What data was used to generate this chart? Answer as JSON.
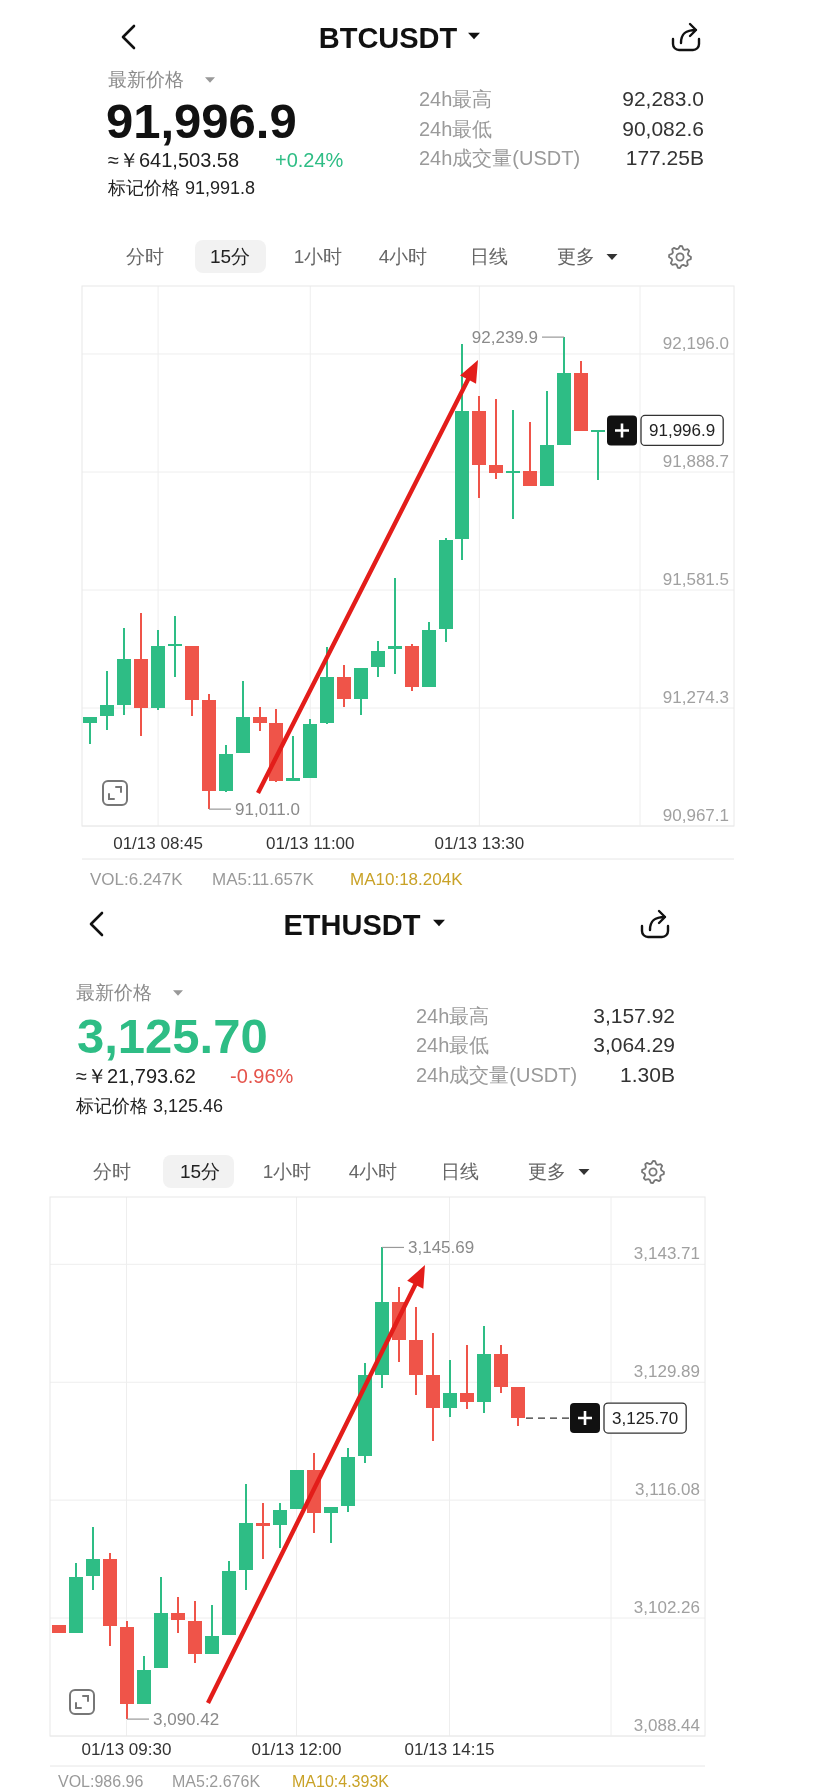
{
  "chart_data": [
    {
      "type": "candlestick",
      "title": "BTCUSDT",
      "annotations": [
        "最新价格",
        "91,996.9",
        "≈￥641,503.58",
        "+0.24%",
        "标记价格 91,991.8",
        "24h最高",
        "92,283.0",
        "24h最低",
        "90,082.6",
        "24h成交量(USDT)",
        "177.25B",
        "分时",
        "15分",
        "1小时",
        "4小时",
        "日线",
        "更多",
        "VOL:6.247K",
        "MA5:11.657K",
        "MA10:18.204K",
        "92,239.9",
        "91,011.0",
        "91,996.9"
      ],
      "categories": [
        null,
        null,
        null,
        null,
        "01/13 08:45",
        null,
        null,
        null,
        null,
        null,
        null,
        null,
        null,
        "01/13 11:00",
        null,
        null,
        null,
        null,
        null,
        null,
        null,
        null,
        null,
        "01/13 13:30",
        null,
        null,
        null,
        null,
        null,
        null,
        null,
        null,
        null
      ],
      "ohlc": [
        [
          91235,
          91250,
          91181,
          91250
        ],
        [
          91254,
          91370,
          91217,
          91282
        ],
        [
          91283,
          91483,
          91256,
          91401
        ],
        [
          91401,
          91521,
          91202,
          91274
        ],
        [
          91274,
          91477,
          91269,
          91436
        ],
        [
          91437,
          91514,
          91356,
          91439
        ],
        [
          91436,
          91436,
          91254,
          91295
        ],
        [
          91295,
          91311,
          91011.0,
          91059
        ],
        [
          91059,
          91178,
          91056,
          91155
        ],
        [
          91157,
          91344,
          91157,
          91250
        ],
        [
          91250,
          91277,
          91214,
          91236
        ],
        [
          91235,
          91272,
          91082,
          91084
        ],
        [
          91085,
          91202,
          91085,
          91092
        ],
        [
          91092,
          91246,
          91092,
          91233
        ],
        [
          91235,
          91434,
          91233,
          91355
        ],
        [
          91355,
          91387,
          91277,
          91297
        ],
        [
          91298,
          91379,
          91256,
          91379
        ],
        [
          91381,
          91448,
          91356,
          91423
        ],
        [
          91429,
          91613,
          91363,
          91436
        ],
        [
          91436,
          91441,
          91318,
          91330
        ],
        [
          91330,
          91498,
          91330,
          91477
        ],
        [
          91481,
          91717,
          91446,
          91712
        ],
        [
          91714,
          92222,
          91660,
          92047
        ],
        [
          92047,
          92087,
          91821,
          91908
        ],
        [
          91907,
          92079,
          91870,
          91886
        ],
        [
          91887,
          92050,
          91766,
          91891
        ],
        [
          91892,
          92019,
          91852,
          91852
        ],
        [
          91852,
          92100,
          91852,
          91959
        ],
        [
          91960,
          92239.9,
          91960,
          92147
        ],
        [
          92147,
          92177,
          91995,
          91995
        ],
        [
          91995,
          91996.9,
          91868,
          91996.9
        ],
        null,
        null
      ],
      "colors": [
        "#2ebd85",
        "#2ebd85",
        "#2ebd85",
        "#ef5449",
        "#2ebd85",
        "#2ebd85",
        "#ef5449",
        "#ef5449",
        "#2ebd85",
        "#2ebd85",
        "#ef5449",
        "#ef5449",
        "#2ebd85",
        "#2ebd85",
        "#2ebd85",
        "#ef5449",
        "#2ebd85",
        "#2ebd85",
        "#2ebd85",
        "#ef5449",
        "#2ebd85",
        "#2ebd85",
        "#2ebd85",
        "#ef5449",
        "#ef5449",
        "#2ebd85",
        "#ef5449",
        "#2ebd85",
        "#2ebd85",
        "#ef5449",
        "#2ebd85",
        null,
        null
      ],
      "ylim": [
        90967.1,
        92373
      ],
      "yticks": [
        {
          "value": 92196.0,
          "label": "92,196.0"
        },
        {
          "value": 91888.7,
          "label": "91,888.7"
        },
        {
          "value": 91581.5,
          "label": "91,581.5"
        },
        {
          "value": 91274.3,
          "label": "91,274.3"
        },
        {
          "value": 90967.1,
          "label": "90,967.1"
        }
      ],
      "grid": true
    },
    {
      "type": "candlestick",
      "title": "ETHUSDT",
      "annotations": [
        "最新价格",
        "3,125.70",
        "≈￥21,793.62",
        "-0.96%",
        "标记价格 3,125.46",
        "24h最高",
        "3,157.92",
        "24h最低",
        "3,064.29",
        "24h成交量(USDT)",
        "1.30B",
        "分时",
        "15分",
        "1小时",
        "4小时",
        "日线",
        "更多",
        "VOL:986.96",
        "MA5:2.676K",
        "MA10:4.393K",
        "3,145.69",
        "3,090.42",
        "3,125.70"
      ],
      "categories": [
        null,
        null,
        null,
        null,
        "01/13 09:30",
        null,
        null,
        null,
        null,
        null,
        null,
        null,
        null,
        null,
        "01/13 12:00",
        null,
        null,
        null,
        null,
        null,
        null,
        null,
        null,
        "01/13 14:15",
        null,
        null,
        null,
        null,
        null,
        null,
        null,
        null,
        null
      ],
      "ohlc": [
        [
          3101.5,
          3101.5,
          3100.5,
          3100.5
        ],
        [
          3100.5,
          3108.7,
          3100.5,
          3107.1
        ],
        [
          3107.2,
          3112.9,
          3105.6,
          3109.2
        ],
        [
          3109.2,
          3109.9,
          3099.0,
          3101.3
        ],
        [
          3101.2,
          3101.9,
          3090.42,
          3092.2
        ],
        [
          3092.2,
          3097.8,
          3092.2,
          3096.2
        ],
        [
          3096.4,
          3107.1,
          3096.4,
          3102.8
        ],
        [
          3102.8,
          3104.7,
          3100.5,
          3102.0
        ],
        [
          3101.9,
          3104.3,
          3097.0,
          3098.1
        ],
        [
          3098.1,
          3103.8,
          3098.1,
          3100.1
        ],
        [
          3100.3,
          3108.9,
          3100.3,
          3107.8
        ],
        [
          3107.9,
          3118.0,
          3105.5,
          3113.4
        ],
        [
          3113.4,
          3115.7,
          3109.2,
          3113.1
        ],
        [
          3113.2,
          3115.7,
          3110.5,
          3114.9
        ],
        [
          3115.0,
          3119.6,
          3115.0,
          3119.6
        ],
        [
          3119.6,
          3121.6,
          3112.2,
          3114.6
        ],
        [
          3114.6,
          3115.3,
          3111.1,
          3115.3
        ],
        [
          3115.4,
          3122.2,
          3114.7,
          3121.1
        ],
        [
          3121.2,
          3132.2,
          3120.4,
          3130.7
        ],
        [
          3130.8,
          3145.69,
          3129.2,
          3139.3
        ],
        [
          3139.3,
          3141.1,
          3132.3,
          3134.9
        ],
        [
          3134.9,
          3138.7,
          3128.4,
          3130.7
        ],
        [
          3130.7,
          3135.7,
          3123.0,
          3126.9
        ],
        [
          3126.9,
          3132.5,
          3125.8,
          3128.6
        ],
        [
          3128.6,
          3134.3,
          3126.7,
          3127.6
        ],
        [
          3127.6,
          3136.5,
          3126.3,
          3133.2
        ],
        [
          3133.2,
          3134.3,
          3128.6,
          3129.3
        ],
        [
          3129.3,
          3129.3,
          3124.8,
          3125.7
        ],
        null,
        null,
        null,
        null,
        null
      ],
      "colors": [
        "#ef5449",
        "#2ebd85",
        "#2ebd85",
        "#ef5449",
        "#ef5449",
        "#2ebd85",
        "#2ebd85",
        "#ef5449",
        "#ef5449",
        "#2ebd85",
        "#2ebd85",
        "#2ebd85",
        "#ef5449",
        "#2ebd85",
        "#2ebd85",
        "#ef5449",
        "#2ebd85",
        "#2ebd85",
        "#2ebd85",
        "#2ebd85",
        "#ef5449",
        "#ef5449",
        "#ef5449",
        "#2ebd85",
        "#ef5449",
        "#2ebd85",
        "#ef5449",
        "#ef5449",
        null,
        null,
        null,
        null,
        null
      ],
      "ylim": [
        3088.44,
        3151.6
      ],
      "yticks": [
        {
          "value": 3143.71,
          "label": "3,143.71"
        },
        {
          "value": 3129.89,
          "label": "3,129.89"
        },
        {
          "value": 3116.08,
          "label": "3,116.08"
        },
        {
          "value": 3102.26,
          "label": "3,102.26"
        },
        {
          "value": 3088.44,
          "label": "3,088.44"
        }
      ],
      "grid": true
    }
  ]
}
